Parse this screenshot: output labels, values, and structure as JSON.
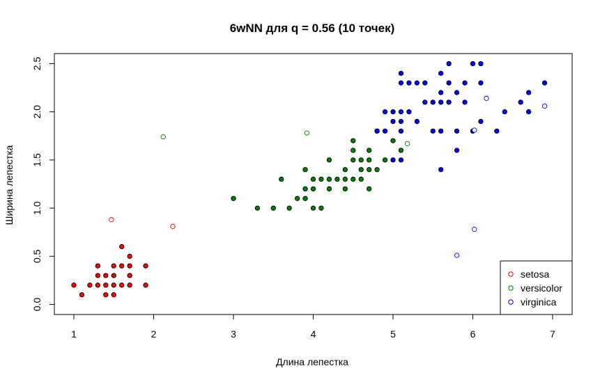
{
  "chart_data": {
    "type": "scatter",
    "title": "6wNN для q = 0.56 (10 точек)",
    "xlabel": "Длина лепестка",
    "ylabel": "Ширина лепестка",
    "xlim": [
      1,
      7
    ],
    "ylim": [
      0,
      2.5
    ],
    "xticks": [
      "1",
      "2",
      "3",
      "4",
      "5",
      "6",
      "7"
    ],
    "yticks": [
      "0.0",
      "0.5",
      "1.0",
      "1.5",
      "2.0",
      "2.5"
    ],
    "grid": false,
    "legend_position": "bottom-right",
    "legend": [
      {
        "name": "setosa",
        "color": "#ff0000"
      },
      {
        "name": "versicolor",
        "color": "#008000"
      },
      {
        "name": "virginica",
        "color": "#0000ff"
      }
    ],
    "series": [
      {
        "name": "setosa",
        "color": "#ff0000",
        "filled": true,
        "points": [
          [
            1.0,
            0.2
          ],
          [
            1.1,
            0.1
          ],
          [
            1.2,
            0.2
          ],
          [
            1.3,
            0.2
          ],
          [
            1.3,
            0.3
          ],
          [
            1.3,
            0.4
          ],
          [
            1.4,
            0.1
          ],
          [
            1.4,
            0.2
          ],
          [
            1.4,
            0.3
          ],
          [
            1.5,
            0.1
          ],
          [
            1.5,
            0.2
          ],
          [
            1.5,
            0.3
          ],
          [
            1.5,
            0.4
          ],
          [
            1.6,
            0.2
          ],
          [
            1.6,
            0.4
          ],
          [
            1.6,
            0.6
          ],
          [
            1.7,
            0.2
          ],
          [
            1.7,
            0.3
          ],
          [
            1.7,
            0.4
          ],
          [
            1.7,
            0.5
          ],
          [
            1.9,
            0.2
          ],
          [
            1.9,
            0.4
          ]
        ]
      },
      {
        "name": "versicolor",
        "color": "#008000",
        "filled": true,
        "points": [
          [
            3.0,
            1.1
          ],
          [
            3.3,
            1.0
          ],
          [
            3.5,
            1.0
          ],
          [
            3.6,
            1.3
          ],
          [
            3.7,
            1.0
          ],
          [
            3.8,
            1.1
          ],
          [
            3.9,
            1.1
          ],
          [
            3.9,
            1.2
          ],
          [
            3.9,
            1.4
          ],
          [
            4.0,
            1.0
          ],
          [
            4.0,
            1.2
          ],
          [
            4.0,
            1.3
          ],
          [
            4.1,
            1.0
          ],
          [
            4.1,
            1.3
          ],
          [
            4.2,
            1.2
          ],
          [
            4.2,
            1.3
          ],
          [
            4.2,
            1.5
          ],
          [
            4.3,
            1.3
          ],
          [
            4.4,
            1.2
          ],
          [
            4.4,
            1.3
          ],
          [
            4.4,
            1.4
          ],
          [
            4.5,
            1.3
          ],
          [
            4.5,
            1.5
          ],
          [
            4.5,
            1.6
          ],
          [
            4.5,
            1.7
          ],
          [
            4.6,
            1.3
          ],
          [
            4.6,
            1.4
          ],
          [
            4.6,
            1.5
          ],
          [
            4.7,
            1.2
          ],
          [
            4.7,
            1.4
          ],
          [
            4.7,
            1.5
          ],
          [
            4.7,
            1.6
          ],
          [
            4.8,
            1.4
          ],
          [
            4.8,
            1.8
          ],
          [
            4.9,
            1.5
          ],
          [
            5.0,
            1.7
          ],
          [
            5.1,
            1.6
          ]
        ]
      },
      {
        "name": "virginica",
        "color": "#0000ff",
        "filled": true,
        "points": [
          [
            4.8,
            1.8
          ],
          [
            4.9,
            1.8
          ],
          [
            4.9,
            2.0
          ],
          [
            5.0,
            1.5
          ],
          [
            5.0,
            1.9
          ],
          [
            5.0,
            2.0
          ],
          [
            5.1,
            1.5
          ],
          [
            5.1,
            1.8
          ],
          [
            5.1,
            1.9
          ],
          [
            5.1,
            2.0
          ],
          [
            5.1,
            2.3
          ],
          [
            5.1,
            2.4
          ],
          [
            5.2,
            2.0
          ],
          [
            5.2,
            2.3
          ],
          [
            5.3,
            1.9
          ],
          [
            5.3,
            2.3
          ],
          [
            5.4,
            2.1
          ],
          [
            5.4,
            2.3
          ],
          [
            5.5,
            1.8
          ],
          [
            5.5,
            2.1
          ],
          [
            5.6,
            1.4
          ],
          [
            5.6,
            1.8
          ],
          [
            5.6,
            2.1
          ],
          [
            5.6,
            2.2
          ],
          [
            5.6,
            2.4
          ],
          [
            5.7,
            2.1
          ],
          [
            5.7,
            2.3
          ],
          [
            5.7,
            2.5
          ],
          [
            5.8,
            1.6
          ],
          [
            5.8,
            1.8
          ],
          [
            5.8,
            2.2
          ],
          [
            5.9,
            2.1
          ],
          [
            5.9,
            2.3
          ],
          [
            6.0,
            1.8
          ],
          [
            6.0,
            2.5
          ],
          [
            6.1,
            1.9
          ],
          [
            6.1,
            2.3
          ],
          [
            6.1,
            2.5
          ],
          [
            6.3,
            1.8
          ],
          [
            6.4,
            2.0
          ],
          [
            6.6,
            2.1
          ],
          [
            6.7,
            2.0
          ],
          [
            6.7,
            2.2
          ],
          [
            6.9,
            2.3
          ]
        ]
      },
      {
        "name": "setosa",
        "color": "#ff0000",
        "filled": false,
        "points": [
          [
            1.47,
            0.88
          ],
          [
            2.24,
            0.81
          ]
        ]
      },
      {
        "name": "versicolor",
        "color": "#008000",
        "filled": false,
        "points": [
          [
            2.12,
            1.74
          ],
          [
            3.92,
            1.78
          ],
          [
            5.18,
            1.67
          ]
        ]
      },
      {
        "name": "virginica",
        "color": "#0000ff",
        "filled": false,
        "points": [
          [
            5.8,
            0.51
          ],
          [
            6.02,
            0.78
          ],
          [
            6.02,
            1.81
          ],
          [
            6.17,
            2.14
          ],
          [
            6.9,
            2.06
          ]
        ]
      }
    ]
  }
}
